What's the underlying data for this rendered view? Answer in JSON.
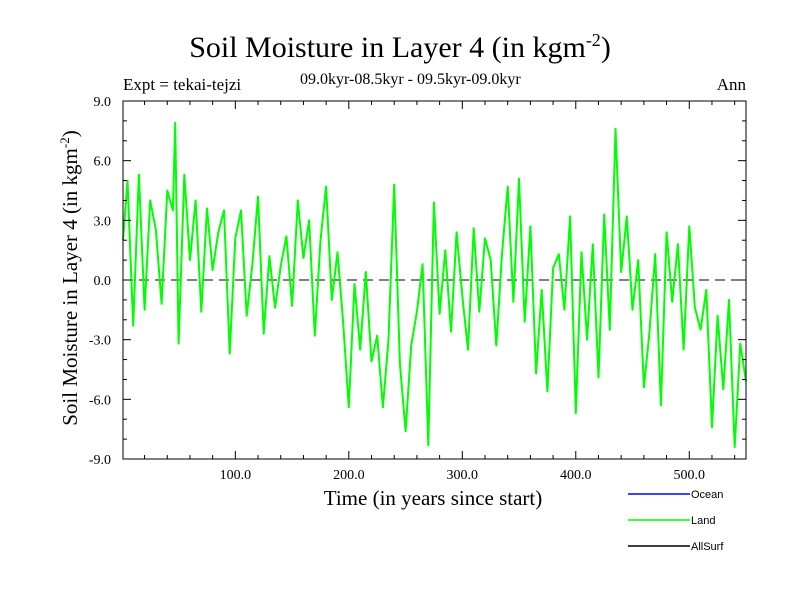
{
  "title": {
    "main": "Soil Moisture in Layer 4 (in kgm",
    "sup": "-2",
    "close": ")"
  },
  "expt_label": "Expt = tekai-tejzi",
  "period_label": "09.0kyr-08.5kyr - 09.5kyr-09.0kyr",
  "season_label": "Ann",
  "colors": {
    "ocean": "#0000ff",
    "land": "#00ff00",
    "allsurf": "#000000",
    "zero_line": "#000000"
  },
  "chart_data": {
    "type": "line",
    "title": "Soil Moisture in Layer 4 (in kgm-2)",
    "xlabel": "Time (in years since start)",
    "ylabel": {
      "main": "Soil Moisture in Layer 4 (in kgm",
      "sup": "-2",
      "close": ")"
    },
    "xlim": [
      1,
      550
    ],
    "ylim": [
      -9,
      9
    ],
    "x_ticks": [
      100,
      200,
      300,
      400,
      500
    ],
    "x_tick_labels": [
      "100.0",
      "200.0",
      "300.0",
      "400.0",
      "500.0"
    ],
    "y_ticks": [
      -9,
      -6,
      -3,
      0,
      3,
      6,
      9
    ],
    "y_tick_labels": [
      "-9.0",
      "-6.0",
      "-3.0",
      "0.0",
      "3.0",
      "6.0",
      "9.0"
    ],
    "zero_line": true,
    "legend": [
      "Ocean",
      "Land",
      "AllSurf"
    ],
    "series": [
      {
        "name": "Land",
        "color": "#00ff00",
        "x": [
          1,
          5,
          10,
          15,
          20,
          25,
          30,
          35,
          40,
          45,
          47,
          50,
          55,
          60,
          65,
          70,
          75,
          80,
          85,
          90,
          95,
          100,
          105,
          110,
          115,
          120,
          125,
          130,
          135,
          140,
          145,
          150,
          155,
          160,
          165,
          170,
          175,
          180,
          185,
          190,
          195,
          200,
          205,
          210,
          215,
          220,
          225,
          230,
          235,
          240,
          245,
          250,
          255,
          260,
          265,
          270,
          275,
          280,
          285,
          290,
          295,
          300,
          305,
          310,
          315,
          320,
          325,
          330,
          335,
          340,
          345,
          350,
          355,
          360,
          365,
          370,
          375,
          380,
          385,
          390,
          395,
          400,
          405,
          410,
          415,
          420,
          425,
          430,
          435,
          440,
          445,
          450,
          455,
          460,
          465,
          470,
          475,
          480,
          485,
          490,
          495,
          500,
          505,
          510,
          515,
          520,
          525,
          530,
          535,
          540,
          545,
          550
        ],
        "values": [
          2.0,
          5.0,
          -2.3,
          5.3,
          -1.5,
          4.0,
          2.5,
          -1.2,
          4.5,
          3.5,
          7.9,
          -3.2,
          5.3,
          1.0,
          4.0,
          -1.6,
          3.6,
          0.5,
          2.4,
          3.5,
          -3.7,
          2.1,
          3.5,
          -1.8,
          0.8,
          4.2,
          -2.7,
          1.2,
          -1.4,
          0.7,
          2.2,
          -1.3,
          4.0,
          1.1,
          3.0,
          -2.8,
          2.0,
          4.7,
          -1.0,
          1.4,
          -2.1,
          -6.4,
          -0.2,
          -3.5,
          0.4,
          -4.1,
          -2.8,
          -6.4,
          -3.0,
          4.8,
          -4.2,
          -7.6,
          -3.3,
          -1.6,
          0.8,
          -8.3,
          3.9,
          -1.7,
          1.5,
          -2.6,
          2.4,
          -0.8,
          -3.5,
          2.6,
          -1.6,
          2.1,
          1.0,
          -3.3,
          1.3,
          4.7,
          -1.1,
          5.1,
          -2.1,
          2.7,
          -4.7,
          -0.5,
          -5.6,
          0.6,
          1.3,
          -1.5,
          3.2,
          -6.7,
          1.4,
          -3.0,
          1.8,
          -4.9,
          3.3,
          -2.5,
          7.6,
          0.4,
          3.2,
          -1.5,
          1.0,
          -5.4,
          -2.6,
          1.3,
          -6.3,
          2.4,
          -1.1,
          1.8,
          -3.5,
          2.7,
          -1.4,
          -2.5,
          -0.5,
          -7.4,
          -1.8,
          -5.5,
          -1.0,
          -8.4,
          -3.2,
          -5.1
        ]
      },
      {
        "name": "Ocean",
        "color": "#0000ff",
        "x": [],
        "values": []
      },
      {
        "name": "AllSurf",
        "color": "#000000",
        "x": [],
        "values": []
      }
    ]
  }
}
